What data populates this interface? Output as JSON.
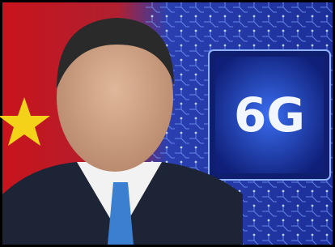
{
  "image": {
    "chip_label": "6G"
  }
}
